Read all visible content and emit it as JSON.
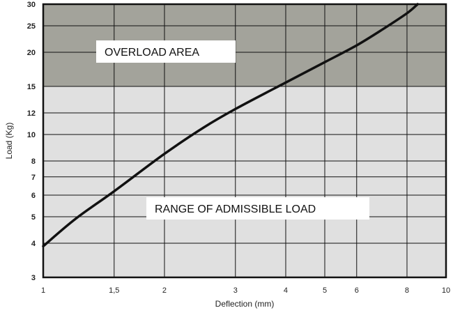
{
  "chart_data": {
    "type": "line",
    "title": "",
    "xlabel": "Deflection (mm)",
    "ylabel": "Load (Kg)",
    "xscale": "log",
    "yscale": "log",
    "xlim": [
      1,
      10
    ],
    "ylim": [
      3,
      30
    ],
    "x_ticks": [
      {
        "value": 1,
        "label": "1"
      },
      {
        "value": 1.5,
        "label": "1,5"
      },
      {
        "value": 2,
        "label": "2"
      },
      {
        "value": 3,
        "label": "3"
      },
      {
        "value": 4,
        "label": "4"
      },
      {
        "value": 5,
        "label": "5"
      },
      {
        "value": 6,
        "label": "6"
      },
      {
        "value": 8,
        "label": "8"
      },
      {
        "value": 10,
        "label": "10"
      }
    ],
    "y_ticks": [
      {
        "value": 3,
        "label": "3"
      },
      {
        "value": 4,
        "label": "4"
      },
      {
        "value": 5,
        "label": "5"
      },
      {
        "value": 6,
        "label": "6"
      },
      {
        "value": 7,
        "label": "7"
      },
      {
        "value": 8,
        "label": "8"
      },
      {
        "value": 10,
        "label": "10"
      },
      {
        "value": 12,
        "label": "12"
      },
      {
        "value": 15,
        "label": "15"
      },
      {
        "value": 20,
        "label": "20"
      },
      {
        "value": 25,
        "label": "25"
      },
      {
        "value": 30,
        "label": "30"
      }
    ],
    "grid": true,
    "regions": [
      {
        "label": "OVERLOAD AREA",
        "y_from": 15,
        "y_to": 30,
        "color": "#a3a39b"
      },
      {
        "label": "RANGE OF ADMISSIBLE LOAD",
        "y_from": 3,
        "y_to": 15,
        "color": "#e0e0e0"
      }
    ],
    "series": [
      {
        "color": "#111111",
        "x": [
          1,
          1.2,
          1.5,
          2,
          2.5,
          3,
          4,
          5,
          6,
          7,
          8,
          8.5
        ],
        "y": [
          3.9,
          4.9,
          6.2,
          8.5,
          10.6,
          12.4,
          15.5,
          18.4,
          21.2,
          24.4,
          27.8,
          30
        ]
      }
    ]
  }
}
